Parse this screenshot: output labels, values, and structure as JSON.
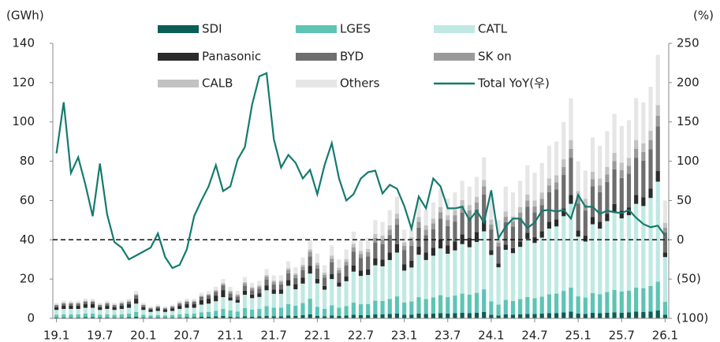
{
  "chart_data": {
    "type": "bar",
    "stacked": true,
    "y_label": "(GWh)",
    "y2_label": "(%)",
    "categories": [
      "19.1",
      null,
      null,
      null,
      null,
      null,
      "19.7",
      null,
      null,
      null,
      null,
      null,
      "20.1",
      null,
      null,
      null,
      null,
      null,
      "20.7",
      null,
      null,
      null,
      null,
      null,
      "21.1",
      null,
      null,
      null,
      null,
      null,
      "21.7",
      null,
      null,
      null,
      null,
      null,
      "22.1",
      null,
      null,
      null,
      null,
      null,
      "22.7",
      null,
      null,
      null,
      null,
      null,
      "23.1",
      null,
      null,
      null,
      null,
      null,
      "23.7",
      null,
      null,
      null,
      null,
      null,
      "24.1",
      null,
      null,
      null,
      null,
      null,
      "24.7",
      null,
      null,
      null,
      null,
      null,
      "25.1",
      null,
      null,
      null,
      null,
      null,
      "25.7",
      null,
      null,
      null,
      null,
      null,
      "26.1"
    ],
    "ylim": [
      0,
      140
    ],
    "yticks": [
      0,
      20,
      40,
      60,
      80,
      100,
      120,
      140
    ],
    "y2lim": [
      -100,
      250
    ],
    "y2ticks": [
      {
        "value": -100,
        "label": "(100)"
      },
      {
        "value": -50,
        "label": "(50)"
      },
      0,
      50,
      100,
      150,
      200,
      250
    ],
    "reference_line": {
      "axis": "y2",
      "value": 0
    },
    "series": [
      {
        "name": "SDI",
        "color": "#0b5e56",
        "values": [
          0.5,
          0.5,
          0.5,
          0.5,
          0.6,
          0.6,
          0.5,
          0.5,
          0.5,
          0.5,
          0.6,
          0.8,
          0.5,
          0.4,
          0.4,
          0.4,
          0.4,
          0.5,
          0.6,
          0.6,
          0.8,
          0.8,
          1.0,
          1.2,
          0.8,
          0.7,
          1.1,
          0.9,
          1,
          1.3,
          1.1,
          1.1,
          1.5,
          1.3,
          1.6,
          2,
          1.3,
          1.1,
          1.5,
          1.2,
          1.4,
          1.8,
          1.6,
          1.6,
          2,
          2,
          2.2,
          2.5,
          1.8,
          1.9,
          2.4,
          2.2,
          2.4,
          2.6,
          2.4,
          2.6,
          2.8,
          2.7,
          2.9,
          3.3,
          1.9,
          1.5,
          2,
          1.9,
          2.1,
          2.3,
          2.2,
          2.4,
          2.6,
          2.7,
          3,
          3.4,
          2.4,
          2.3,
          2.8,
          2.6,
          2.9,
          3.1,
          2.9,
          3,
          3.4,
          3.3,
          3.5,
          4,
          1.8
        ]
      },
      {
        "name": "LGES",
        "color": "#5ec4b4",
        "values": [
          1.4,
          1.6,
          1.6,
          1.6,
          1.8,
          1.8,
          1.4,
          1.6,
          1.4,
          1.6,
          1.8,
          2.5,
          1.4,
          1.1,
          1.3,
          1.1,
          1.3,
          1.6,
          1.8,
          1.8,
          2.3,
          2.5,
          2.9,
          3.6,
          3.2,
          2.8,
          4.2,
          3.6,
          3.8,
          5,
          4.4,
          4.4,
          5.8,
          5.2,
          6.2,
          8,
          4.6,
          3.8,
          5.2,
          4.2,
          4.9,
          6.2,
          5.6,
          5.7,
          7,
          6.9,
          7.7,
          8.7,
          6.3,
          6.7,
          8.4,
          7.7,
          8.3,
          9.2,
          8.5,
          9,
          9.8,
          9.4,
          10.1,
          11.5,
          6.8,
          5.5,
          7.4,
          7,
          7.7,
          8.6,
          8.1,
          8.7,
          9.7,
          9.9,
          11,
          12.3,
          8.8,
          8.3,
          10.1,
          9.7,
          10.5,
          11.4,
          10.8,
          11.1,
          12.3,
          12.1,
          13,
          14.7,
          6.6
        ]
      },
      {
        "name": "CATL",
        "color": "#bfe9e2",
        "values": [
          2.4,
          2.7,
          2.7,
          2.7,
          3,
          3,
          2.4,
          2.7,
          2.4,
          2.7,
          3,
          4.2,
          2.4,
          1.8,
          2.1,
          1.8,
          2.1,
          2.7,
          3,
          3,
          3.9,
          4.2,
          4.8,
          6,
          5.1,
          4.5,
          6.7,
          5.8,
          6.1,
          8,
          7,
          7,
          9.3,
          8.3,
          9.9,
          12.8,
          11.9,
          9.7,
          13.3,
          10.8,
          12.6,
          15.8,
          14.4,
          14.8,
          18,
          17.6,
          19.8,
          22.3,
          16.2,
          17.3,
          21.6,
          19.8,
          21.2,
          23.8,
          22,
          23,
          25.2,
          24.1,
          25.9,
          29.5,
          23.6,
          19,
          25.5,
          24.3,
          26.6,
          29.6,
          28.1,
          30,
          33.4,
          34.2,
          38,
          42.6,
          30.4,
          28.5,
          35,
          33.4,
          36.1,
          39.5,
          37.2,
          38.4,
          42.6,
          41.8,
          44.8,
          50.9,
          22.8
        ]
      },
      {
        "name": "Panasonic",
        "color": "#2b2b2b",
        "values": [
          1.4,
          1.6,
          1.6,
          1.6,
          1.8,
          1.8,
          1.4,
          1.6,
          1.4,
          1.6,
          1.8,
          2.5,
          1.4,
          1.1,
          1.3,
          1.1,
          1.3,
          1.6,
          1.8,
          1.8,
          2.3,
          2.5,
          2.9,
          3.6,
          1.6,
          1.4,
          2.1,
          1.8,
          1.9,
          2.5,
          2.2,
          2.2,
          2.9,
          2.6,
          3.1,
          4,
          2.3,
          1.9,
          2.6,
          2.1,
          2.5,
          3.1,
          2.8,
          2.9,
          3.5,
          3.4,
          3.9,
          4.3,
          3.2,
          3.4,
          4.2,
          3.9,
          4.1,
          4.6,
          4.3,
          4.5,
          4.9,
          4.7,
          5,
          5.7,
          2.5,
          2,
          2.7,
          2.6,
          2.8,
          3.1,
          3,
          3.2,
          3.5,
          3.6,
          4,
          4.5,
          3.2,
          3,
          3.7,
          3.5,
          3.8,
          4.2,
          3.9,
          4,
          4.5,
          4.4,
          4.7,
          5.4,
          2.4
        ]
      },
      {
        "name": "BYD",
        "color": "#6e6e6e",
        "values": [
          1,
          1.1,
          1.1,
          1.1,
          1.2,
          1.2,
          1,
          1.1,
          1,
          1.1,
          1.2,
          1.7,
          1,
          0.7,
          0.8,
          0.7,
          0.8,
          1.1,
          1.2,
          1.2,
          1.6,
          1.7,
          1.9,
          2.4,
          1.9,
          1.7,
          2.5,
          2.2,
          2.3,
          3,
          2.6,
          2.6,
          3.5,
          3.1,
          3.7,
          4.8,
          5.3,
          4.3,
          5.9,
          4.8,
          5.6,
          7,
          6.4,
          6.6,
          8,
          7.8,
          8.8,
          9.9,
          7.2,
          7.7,
          9.6,
          8.8,
          9.4,
          10.6,
          9.8,
          10.2,
          11.2,
          10.7,
          11.5,
          13.1,
          10.5,
          8.5,
          11.4,
          10.9,
          11.9,
          13.3,
          12.6,
          13.4,
          15,
          15.3,
          17,
          19,
          13.6,
          12.8,
          15.6,
          15,
          16.2,
          17.7,
          16.7,
          17.2,
          19,
          18.7,
          20.1,
          22.8,
          10.2
        ]
      },
      {
        "name": "SK on",
        "color": "#9a9a9a",
        "values": [
          0.2,
          0.3,
          0.3,
          0.3,
          0.3,
          0.3,
          0.2,
          0.3,
          0.2,
          0.3,
          0.3,
          0.4,
          0.2,
          0.2,
          0.2,
          0.2,
          0.2,
          0.3,
          0.3,
          0.3,
          0.4,
          0.4,
          0.5,
          0.6,
          1,
          0.8,
          1.3,
          1.1,
          1.1,
          1.5,
          1.3,
          1.3,
          1.7,
          1.6,
          1.9,
          2.4,
          1.7,
          1.4,
          1.9,
          1.5,
          1.8,
          2.2,
          2,
          2.1,
          2.5,
          2.5,
          2.8,
          3.1,
          2.3,
          2.4,
          3,
          2.8,
          3,
          3.3,
          3.1,
          3.2,
          3.5,
          3.4,
          3.6,
          4.1,
          2.5,
          2,
          2.7,
          2.6,
          2.8,
          3.1,
          3,
          3.2,
          3.5,
          3.6,
          4,
          4.5,
          3.2,
          3,
          3.7,
          3.5,
          3.8,
          4.2,
          3.9,
          4,
          4.5,
          4.4,
          4.7,
          5.4,
          2.4
        ]
      },
      {
        "name": "CALB",
        "color": "#c2c2c2",
        "values": [
          0.2,
          0.3,
          0.3,
          0.3,
          0.3,
          0.3,
          0.2,
          0.3,
          0.2,
          0.3,
          0.3,
          0.4,
          0.2,
          0.2,
          0.2,
          0.2,
          0.2,
          0.3,
          0.3,
          0.3,
          0.4,
          0.4,
          0.5,
          0.6,
          0.5,
          0.4,
          0.6,
          0.5,
          0.6,
          0.8,
          0.7,
          0.7,
          0.9,
          0.8,
          0.9,
          1.2,
          1.3,
          1.1,
          1.5,
          1.2,
          1.4,
          1.8,
          1.6,
          1.6,
          2,
          2,
          2.2,
          2.5,
          1.8,
          1.9,
          2.4,
          2.2,
          2.4,
          2.6,
          2.4,
          2.6,
          2.8,
          2.7,
          2.9,
          3.3,
          2.5,
          2,
          2.7,
          2.6,
          2.8,
          3.1,
          3,
          3.2,
          3.5,
          3.6,
          4,
          4.5,
          3.2,
          3,
          3.7,
          3.5,
          3.8,
          4.2,
          3.9,
          4,
          4.5,
          4.4,
          4.7,
          5.4,
          2.4
        ]
      },
      {
        "name": "Others",
        "color": "#e6e6e6",
        "values": [
          0.8,
          0.9,
          0.9,
          0.9,
          1,
          1,
          0.8,
          0.9,
          0.8,
          0.9,
          1,
          1.4,
          0.8,
          0.6,
          0.7,
          0.6,
          0.7,
          0.9,
          1,
          1,
          1.3,
          1.4,
          1.6,
          2,
          1.9,
          1.7,
          2.5,
          2.2,
          2.3,
          3,
          2.6,
          2.6,
          3.5,
          3.1,
          3.7,
          4.8,
          4.6,
          3.8,
          5.2,
          4.2,
          4.9,
          6.2,
          5.6,
          5.7,
          7,
          6.9,
          7.7,
          8.7,
          6.3,
          6.7,
          8.4,
          7.7,
          8.3,
          9.2,
          8.5,
          9,
          9.8,
          9.4,
          10.1,
          11.5,
          11.8,
          9.5,
          12.7,
          12.2,
          13.3,
          14.8,
          14.1,
          15,
          16.7,
          17.1,
          19,
          21.3,
          15.2,
          14.3,
          17.5,
          16.7,
          18.1,
          19.8,
          18.6,
          19.2,
          21.3,
          20.9,
          22.4,
          25.5,
          11.4
        ]
      },
      {
        "name": "Total YoY(우)",
        "color": "#157a6e",
        "axis": "y2",
        "values": [
          110,
          175,
          85,
          105,
          70,
          30,
          97,
          32,
          -3,
          -10,
          -25,
          -20,
          -15,
          -10,
          8,
          -22,
          -36,
          -32,
          -12,
          30,
          50,
          68,
          95,
          62,
          68,
          102,
          118,
          172,
          208,
          212,
          128,
          92,
          108,
          98,
          78,
          89,
          58,
          95,
          123,
          78,
          50,
          58,
          78,
          86,
          88,
          59,
          70,
          65,
          43,
          14,
          55,
          40,
          78,
          68,
          40,
          40,
          42,
          25,
          37,
          22,
          63,
          2,
          17,
          27,
          27,
          15,
          22,
          37,
          38,
          36,
          38,
          27,
          57,
          42,
          42,
          33,
          37,
          35,
          34,
          38,
          28,
          20,
          16,
          18,
          5
        ]
      }
    ]
  }
}
